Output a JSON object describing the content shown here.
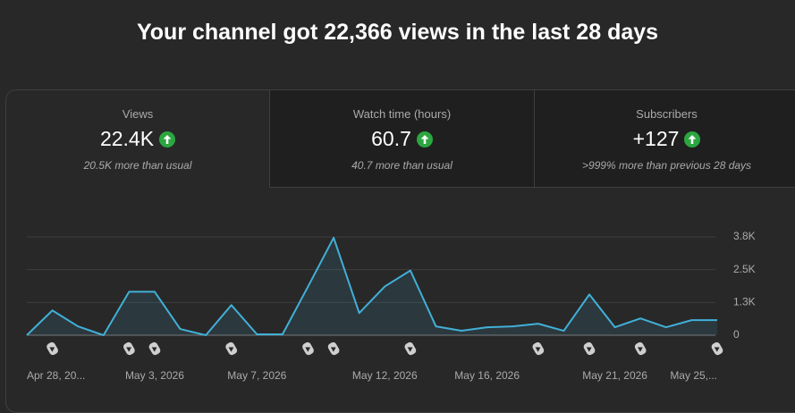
{
  "header": {
    "title": "Your channel got 22,366 views in the last 28 days"
  },
  "metrics": [
    {
      "label": "Views",
      "value": "22.4K",
      "note": "20.5K more than usual"
    },
    {
      "label": "Watch time (hours)",
      "value": "60.7",
      "note": "40.7 more than usual"
    },
    {
      "label": "Subscribers",
      "value": "+127",
      "note": ">999% more than previous 28 days"
    }
  ],
  "chart_data": {
    "type": "line",
    "categories": [
      "Apr 28, 20...",
      null,
      null,
      null,
      null,
      "May 3, 2026",
      null,
      null,
      null,
      "May 7, 2026",
      null,
      null,
      null,
      null,
      "May 12, 2026",
      null,
      null,
      null,
      "May 16, 2026",
      null,
      null,
      null,
      null,
      "May 21, 2026",
      null,
      null,
      null,
      "May 25,..."
    ],
    "values": [
      0,
      946,
      338,
      0,
      1656,
      1656,
      237,
      0,
      1149,
      34,
      34,
      1860,
      3718,
      845,
      1860,
      2467,
      338,
      169,
      304,
      338,
      439,
      169,
      1555,
      304,
      642,
      304,
      575,
      575
    ],
    "color": "#41b0d8",
    "ylim": [
      0,
      3750
    ],
    "yticks": [
      0,
      {
        "value": 1250,
        "label": "1.3K"
      },
      {
        "value": 2500,
        "label": "2.5K"
      },
      {
        "value": 3750,
        "label": "3.8K"
      }
    ],
    "grid": true
  }
}
